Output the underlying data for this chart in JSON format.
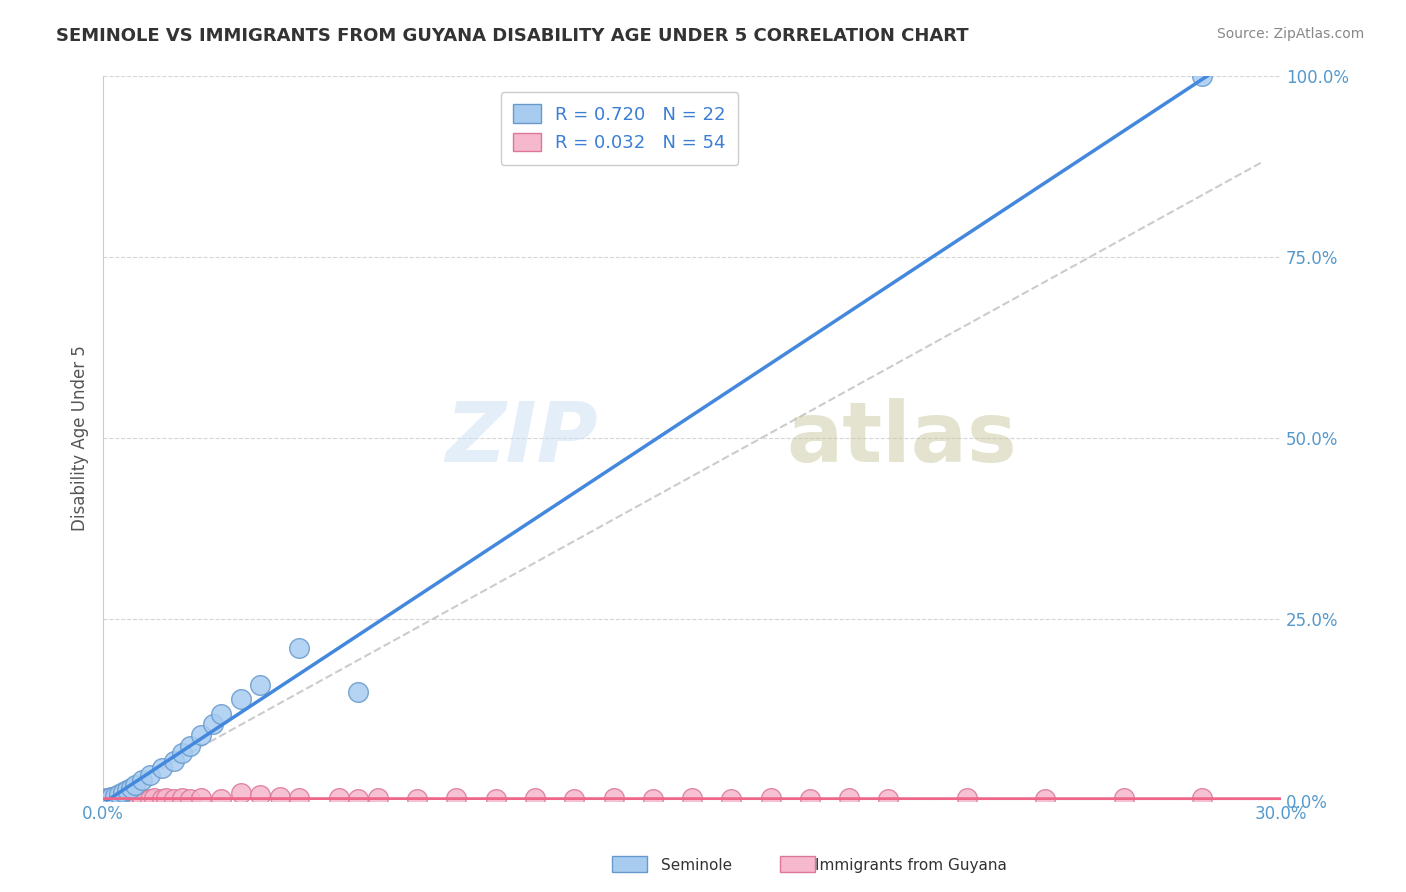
{
  "title": "SEMINOLE VS IMMIGRANTS FROM GUYANA DISABILITY AGE UNDER 5 CORRELATION CHART",
  "source": "Source: ZipAtlas.com",
  "ylabel": "Disability Age Under 5",
  "xlim": [
    0.0,
    0.3
  ],
  "ylim": [
    0.0,
    1.0
  ],
  "xtick_positions": [
    0.0,
    0.3
  ],
  "xtick_labels": [
    "0.0%",
    "30.0%"
  ],
  "ytick_positions": [
    0.0,
    0.25,
    0.5,
    0.75,
    1.0
  ],
  "ytick_labels": [
    "0.0%",
    "25.0%",
    "50.0%",
    "75.0%",
    "100.0%"
  ],
  "seminole_color": "#a8ccf0",
  "guyana_color": "#f5b8cc",
  "seminole_edge": "#6699cc",
  "guyana_edge": "#dd7799",
  "trendline_seminole": "#4488dd",
  "trendline_guyana": "#ee6688",
  "trendline_dashed": "#bbbbbb",
  "R_seminole": 0.72,
  "N_seminole": 22,
  "R_guyana": 0.032,
  "N_guyana": 54,
  "legend_color_seminole": "#a8ccf0",
  "legend_color_guyana": "#f5b8cc",
  "watermark_zip": "ZIP",
  "watermark_atlas": "atlas",
  "background_color": "#ffffff",
  "seminole_x": [
    0.001,
    0.002,
    0.003,
    0.004,
    0.005,
    0.006,
    0.007,
    0.008,
    0.01,
    0.012,
    0.015,
    0.018,
    0.02,
    0.022,
    0.025,
    0.028,
    0.03,
    0.035,
    0.04,
    0.05,
    0.065,
    0.28
  ],
  "seminole_y": [
    0.003,
    0.005,
    0.007,
    0.009,
    0.012,
    0.015,
    0.018,
    0.022,
    0.028,
    0.035,
    0.045,
    0.055,
    0.065,
    0.075,
    0.09,
    0.105,
    0.12,
    0.14,
    0.16,
    0.21,
    0.15,
    1.0
  ],
  "guyana_x": [
    0.001,
    0.001,
    0.002,
    0.002,
    0.003,
    0.003,
    0.004,
    0.004,
    0.004,
    0.005,
    0.005,
    0.005,
    0.006,
    0.006,
    0.007,
    0.007,
    0.008,
    0.008,
    0.009,
    0.01,
    0.01,
    0.012,
    0.013,
    0.015,
    0.016,
    0.018,
    0.02,
    0.022,
    0.025,
    0.03,
    0.035,
    0.04,
    0.045,
    0.05,
    0.06,
    0.065,
    0.07,
    0.08,
    0.09,
    0.1,
    0.11,
    0.12,
    0.13,
    0.14,
    0.15,
    0.16,
    0.17,
    0.18,
    0.19,
    0.2,
    0.22,
    0.24,
    0.26,
    0.28
  ],
  "guyana_y": [
    0.002,
    0.003,
    0.002,
    0.003,
    0.002,
    0.003,
    0.002,
    0.003,
    0.002,
    0.002,
    0.003,
    0.002,
    0.003,
    0.002,
    0.002,
    0.003,
    0.002,
    0.003,
    0.002,
    0.002,
    0.003,
    0.002,
    0.003,
    0.002,
    0.003,
    0.002,
    0.003,
    0.002,
    0.003,
    0.002,
    0.01,
    0.008,
    0.005,
    0.003,
    0.003,
    0.002,
    0.003,
    0.002,
    0.003,
    0.002,
    0.003,
    0.002,
    0.003,
    0.002,
    0.003,
    0.002,
    0.003,
    0.002,
    0.003,
    0.002,
    0.003,
    0.002,
    0.003,
    0.003
  ]
}
